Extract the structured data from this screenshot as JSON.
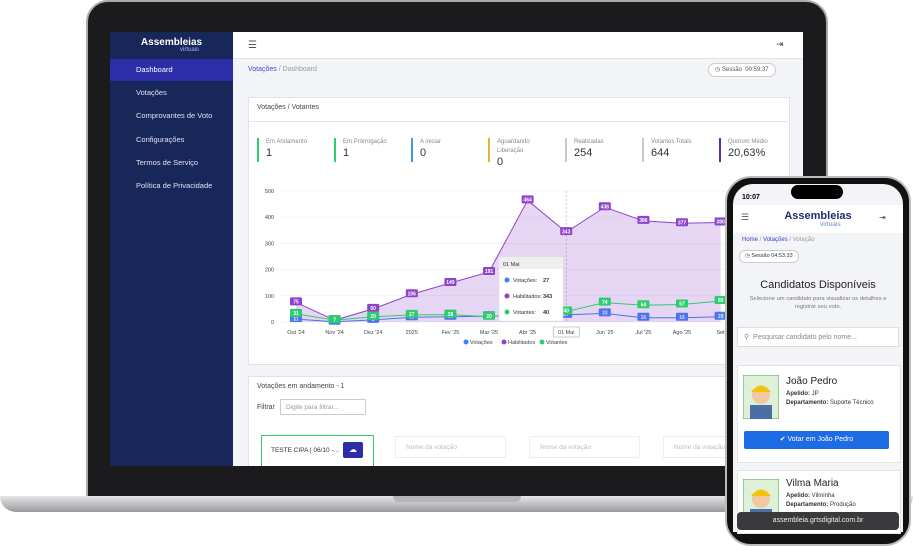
{
  "laptop": {
    "sidebar": {
      "logo": "Assembleias",
      "logo_sub": "virtuais",
      "menu": [
        "Dashboard",
        "Votações",
        "Comprovantes de Voto",
        "Configurações",
        "Termos de Serviço",
        "Política de Privacidade"
      ]
    },
    "breadcrumb": [
      "Votações",
      "Dashboard"
    ],
    "session": {
      "label": "Sessão",
      "time": "00:59:37"
    },
    "card_title": "Votações / Votantes",
    "stats": [
      {
        "label": "Em Andamento",
        "value": 1,
        "color": "#2ecc71"
      },
      {
        "label": "Em Prorrogação",
        "value": 1,
        "color": "#2ecc71"
      },
      {
        "label": "A iniciar",
        "value": 0,
        "color": "#3b9be0"
      },
      {
        "label": "Aguardando Liberação",
        "value": 0,
        "color": "#e0b43b"
      },
      {
        "label": "Realizadas",
        "value": 254,
        "color": "#c8c8c8"
      },
      {
        "label": "Votantes Totais",
        "value": 644,
        "color": "#c8c8c8"
      },
      {
        "label": "Quórum Médio",
        "value": "20,63%",
        "color": "#5b2fb0"
      }
    ],
    "chart": {
      "type": "line",
      "x": [
        "Out '24",
        "Nov '24",
        "Dez '24",
        "2025",
        "Fev '25",
        "Mar '25",
        "Abr '25",
        "01 Mai",
        "Jun '25",
        "Jul '25",
        "Ago '25",
        "Set"
      ],
      "ylim": [
        0,
        500
      ],
      "yticks": [
        0,
        100,
        200,
        300,
        400,
        500
      ],
      "series": [
        {
          "name": "Votações",
          "color": "#3b82f6",
          "values": [
            11,
            1,
            8,
            18,
            20,
            22,
            25,
            27,
            33,
            16,
            16,
            20
          ]
        },
        {
          "name": "Habilitados",
          "color": "#8e44c9",
          "values": [
            75,
            7,
            50,
            106,
            149,
            191,
            464,
            343,
            438,
            386,
            377,
            380
          ],
          "area": true
        },
        {
          "name": "Votantes",
          "color": "#2ecc71",
          "values": [
            31,
            7,
            20,
            27,
            28,
            20,
            35,
            40,
            74,
            64,
            67,
            80
          ]
        }
      ],
      "tooltip": {
        "title": "01 Mai",
        "items": [
          {
            "label": "Votações:",
            "value": 27
          },
          {
            "label": "Habilitados:",
            "value": 343
          },
          {
            "label": "Votantes:",
            "value": 40
          }
        ]
      }
    },
    "in_progress": {
      "title": "Votações em andamento - 1",
      "filter_label": "Filtrar",
      "filter_placeholder": "Digite para filtrar...",
      "card": "TESTE CIPA | 06/10 -...",
      "placeholders": [
        "Nome da votação",
        "Nome da votação",
        "Nome da votação"
      ]
    }
  },
  "phone": {
    "time": "10:07",
    "logo": "Assembleias",
    "logo_sub": "virtuais",
    "breadcrumb": [
      "Home",
      "Votações",
      "Votação"
    ],
    "session": {
      "label": "Sessão",
      "time": "04:53:33"
    },
    "title": "Candidatos Disponíveis",
    "description": "Selecione um candidato para visualizar os detalhes e registrar seu voto.",
    "search": "Pesquisar candidato pelo nome...",
    "candidates": [
      {
        "name": "João Pedro",
        "nick_label": "Apelido:",
        "nick": "JP",
        "dept_label": "Departamento:",
        "dept": "Suporte Técnico",
        "button": "Votar em João Pedro"
      },
      {
        "name": "Vilma Maria",
        "nick_label": "Apelido:",
        "nick": "Vilminha",
        "dept_label": "Departamento:",
        "dept": "Produção"
      }
    ],
    "url": "assembleia.grtsdigital.com.br"
  }
}
